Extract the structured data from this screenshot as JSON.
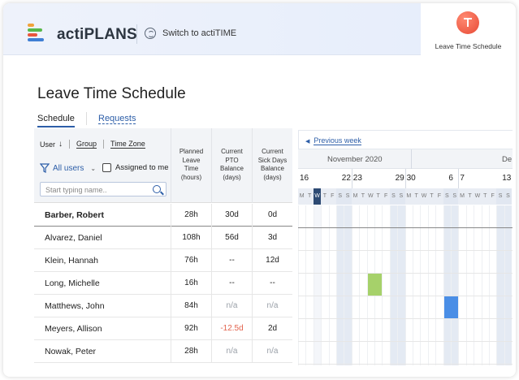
{
  "app": {
    "name": "actiPLANS",
    "switch_label": "Switch to actiTIME",
    "module_label": "Leave Time Schedule"
  },
  "page": {
    "title": "Leave Time Schedule",
    "tabs": [
      "Schedule",
      "Requests"
    ]
  },
  "filters": {
    "sort_user": "User",
    "sort_group": "Group",
    "sort_timezone": "Time Zone",
    "scope": "All users",
    "assigned_label": "Assigned to me",
    "search_placeholder": "Start typing name.."
  },
  "columns": {
    "planned": [
      "Planned",
      "Leave",
      "Time",
      "(hours)"
    ],
    "pto": [
      "Current",
      "PTO",
      "Balance",
      "(days)"
    ],
    "sick": [
      "Current",
      "Sick Days",
      "Balance",
      "(days)"
    ]
  },
  "rows": [
    {
      "name": "Barber, Robert",
      "planned": "28h",
      "pto": "30d",
      "sick": "0d"
    },
    {
      "name": "Alvarez, Daniel",
      "planned": "108h",
      "pto": "56d",
      "sick": "3d"
    },
    {
      "name": "Klein, Hannah",
      "planned": "76h",
      "pto": "--",
      "sick": "12d"
    },
    {
      "name": "Long, Michelle",
      "planned": "16h",
      "pto": "--",
      "sick": "--"
    },
    {
      "name": "Matthews, John",
      "planned": "84h",
      "pto": "n/a",
      "sick": "n/a"
    },
    {
      "name": "Meyers, Allison",
      "planned": "92h",
      "pto": "-12.5d",
      "sick": "2d"
    },
    {
      "name": "Nowak, Peter",
      "planned": "28h",
      "pto": "n/a",
      "sick": "n/a"
    }
  ],
  "calendar": {
    "prev_week": "Previous week",
    "months": [
      "November 2020",
      "De"
    ],
    "week_starts": [
      "16",
      "22",
      "23",
      "29",
      "30",
      "6",
      "7",
      "13"
    ],
    "day_letters": [
      "M",
      "T",
      "W",
      "T",
      "F",
      "S",
      "S",
      "M",
      "T",
      "W",
      "T",
      "F",
      "S",
      "S",
      "M",
      "T",
      "W",
      "T",
      "F",
      "S",
      "S",
      "M",
      "T",
      "W",
      "T",
      "F",
      "S",
      "S"
    ],
    "today_index": 2,
    "leaves": [
      {
        "row": 3,
        "start": 9,
        "days": 2,
        "color": "#a6d16a"
      },
      {
        "row": 4,
        "start": 19,
        "days": 2,
        "color": "#4a8ee6"
      }
    ]
  },
  "colors": {
    "accent": "#2d5ea8",
    "negative": "#e2634d",
    "module_icon": "#e84a35"
  }
}
